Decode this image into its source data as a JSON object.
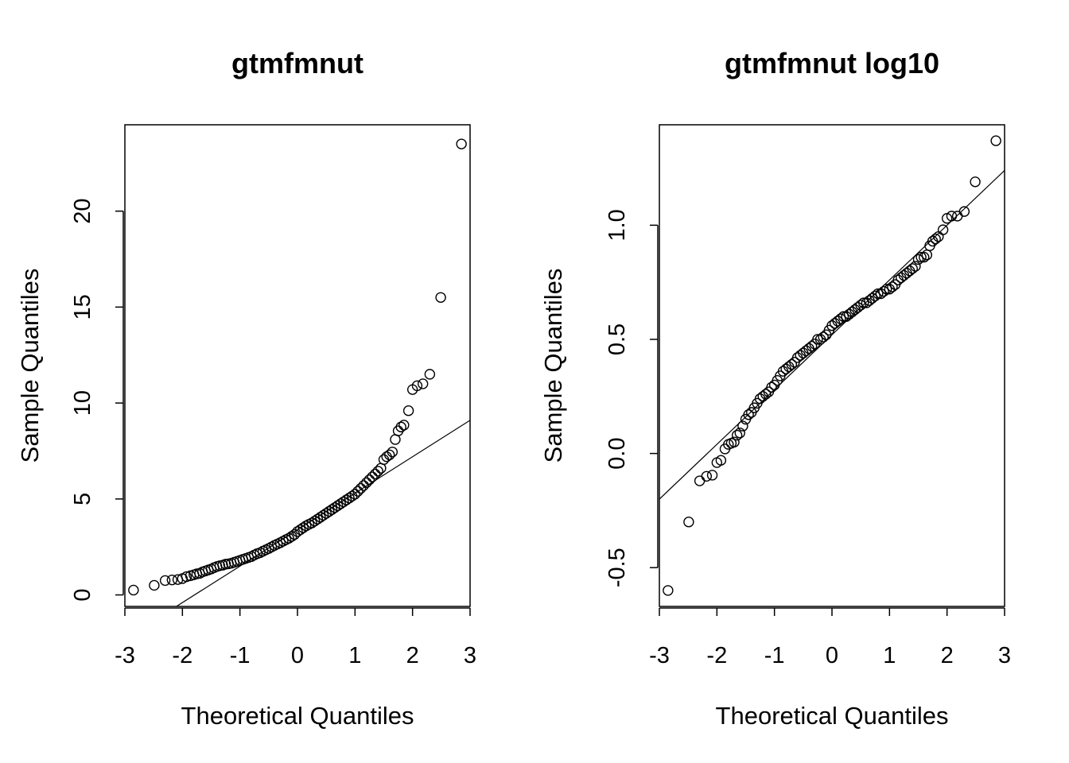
{
  "chart_data": [
    {
      "type": "scatter",
      "subtype": "qq-normal",
      "title": "gtmfmnut",
      "xlabel": "Theoretical Quantiles",
      "ylabel": "Sample Quantiles",
      "xlim": [
        -3,
        3
      ],
      "ylim": [
        -0.6,
        24.5
      ],
      "xticks": [
        -3,
        -2,
        -1,
        0,
        1,
        2,
        3
      ],
      "yticks": [
        0,
        5,
        10,
        15,
        20
      ],
      "reference_line": {
        "intercept": 3.4,
        "slope": 1.9
      },
      "points": [
        [
          -2.85,
          0.25
        ],
        [
          -2.49,
          0.5
        ],
        [
          -2.3,
          0.75
        ],
        [
          -2.18,
          0.78
        ],
        [
          -2.08,
          0.8
        ],
        [
          -2.0,
          0.85
        ],
        [
          -1.93,
          0.95
        ],
        [
          -1.86,
          1.0
        ],
        [
          -1.8,
          1.05
        ],
        [
          -1.75,
          1.1
        ],
        [
          -1.7,
          1.12
        ],
        [
          -1.65,
          1.2
        ],
        [
          -1.6,
          1.25
        ],
        [
          -1.55,
          1.3
        ],
        [
          -1.5,
          1.35
        ],
        [
          -1.45,
          1.42
        ],
        [
          -1.4,
          1.48
        ],
        [
          -1.35,
          1.52
        ],
        [
          -1.3,
          1.55
        ],
        [
          -1.25,
          1.6
        ],
        [
          -1.2,
          1.62
        ],
        [
          -1.15,
          1.65
        ],
        [
          -1.1,
          1.7
        ],
        [
          -1.05,
          1.75
        ],
        [
          -1.0,
          1.8
        ],
        [
          -0.95,
          1.85
        ],
        [
          -0.9,
          1.9
        ],
        [
          -0.85,
          1.95
        ],
        [
          -0.8,
          2.0
        ],
        [
          -0.75,
          2.08
        ],
        [
          -0.7,
          2.15
        ],
        [
          -0.65,
          2.2
        ],
        [
          -0.6,
          2.28
        ],
        [
          -0.55,
          2.35
        ],
        [
          -0.5,
          2.42
        ],
        [
          -0.45,
          2.5
        ],
        [
          -0.4,
          2.58
        ],
        [
          -0.35,
          2.65
        ],
        [
          -0.3,
          2.72
        ],
        [
          -0.25,
          2.8
        ],
        [
          -0.2,
          2.88
        ],
        [
          -0.15,
          2.95
        ],
        [
          -0.1,
          3.05
        ],
        [
          -0.05,
          3.15
        ],
        [
          0.0,
          3.3
        ],
        [
          0.05,
          3.4
        ],
        [
          0.1,
          3.5
        ],
        [
          0.15,
          3.6
        ],
        [
          0.2,
          3.68
        ],
        [
          0.25,
          3.75
        ],
        [
          0.3,
          3.85
        ],
        [
          0.35,
          3.95
        ],
        [
          0.4,
          4.05
        ],
        [
          0.45,
          4.15
        ],
        [
          0.5,
          4.25
        ],
        [
          0.55,
          4.35
        ],
        [
          0.6,
          4.45
        ],
        [
          0.65,
          4.55
        ],
        [
          0.7,
          4.65
        ],
        [
          0.75,
          4.75
        ],
        [
          0.8,
          4.85
        ],
        [
          0.85,
          4.95
        ],
        [
          0.9,
          5.05
        ],
        [
          0.95,
          5.15
        ],
        [
          1.0,
          5.25
        ],
        [
          1.05,
          5.4
        ],
        [
          1.1,
          5.55
        ],
        [
          1.15,
          5.7
        ],
        [
          1.2,
          5.85
        ],
        [
          1.25,
          6.0
        ],
        [
          1.3,
          6.15
        ],
        [
          1.35,
          6.3
        ],
        [
          1.4,
          6.45
        ],
        [
          1.45,
          6.6
        ],
        [
          1.5,
          7.05
        ],
        [
          1.55,
          7.2
        ],
        [
          1.6,
          7.3
        ],
        [
          1.65,
          7.45
        ],
        [
          1.7,
          8.1
        ],
        [
          1.75,
          8.55
        ],
        [
          1.8,
          8.75
        ],
        [
          1.85,
          8.85
        ],
        [
          1.93,
          9.6
        ],
        [
          2.0,
          10.7
        ],
        [
          2.08,
          10.9
        ],
        [
          2.18,
          11.0
        ],
        [
          2.3,
          11.5
        ],
        [
          2.49,
          15.5
        ],
        [
          2.85,
          23.5
        ]
      ]
    },
    {
      "type": "scatter",
      "subtype": "qq-normal",
      "title": "gtmfmnut log10",
      "xlabel": "Theoretical Quantiles",
      "ylabel": "Sample Quantiles",
      "xlim": [
        -3,
        3
      ],
      "ylim": [
        -0.67,
        1.44
      ],
      "xticks": [
        -3,
        -2,
        -1,
        0,
        1,
        2,
        3
      ],
      "yticks": [
        -0.5,
        0.0,
        0.5,
        1.0
      ],
      "reference_line": {
        "intercept": 0.52,
        "slope": 0.24
      },
      "points": [
        [
          -2.85,
          -0.6
        ],
        [
          -2.49,
          -0.3
        ],
        [
          -2.3,
          -0.12
        ],
        [
          -2.18,
          -0.1
        ],
        [
          -2.08,
          -0.095
        ],
        [
          -2.0,
          -0.04
        ],
        [
          -1.93,
          -0.03
        ],
        [
          -1.86,
          0.02
        ],
        [
          -1.8,
          0.04
        ],
        [
          -1.75,
          0.045
        ],
        [
          -1.7,
          0.05
        ],
        [
          -1.65,
          0.08
        ],
        [
          -1.6,
          0.09
        ],
        [
          -1.55,
          0.12
        ],
        [
          -1.5,
          0.15
        ],
        [
          -1.45,
          0.17
        ],
        [
          -1.4,
          0.18
        ],
        [
          -1.35,
          0.2
        ],
        [
          -1.3,
          0.22
        ],
        [
          -1.25,
          0.24
        ],
        [
          -1.2,
          0.25
        ],
        [
          -1.15,
          0.26
        ],
        [
          -1.1,
          0.27
        ],
        [
          -1.05,
          0.29
        ],
        [
          -1.0,
          0.3
        ],
        [
          -0.95,
          0.32
        ],
        [
          -0.9,
          0.34
        ],
        [
          -0.85,
          0.36
        ],
        [
          -0.8,
          0.37
        ],
        [
          -0.75,
          0.38
        ],
        [
          -0.7,
          0.39
        ],
        [
          -0.65,
          0.4
        ],
        [
          -0.6,
          0.42
        ],
        [
          -0.55,
          0.43
        ],
        [
          -0.5,
          0.44
        ],
        [
          -0.45,
          0.45
        ],
        [
          -0.4,
          0.46
        ],
        [
          -0.35,
          0.47
        ],
        [
          -0.3,
          0.48
        ],
        [
          -0.25,
          0.5
        ],
        [
          -0.2,
          0.5
        ],
        [
          -0.15,
          0.51
        ],
        [
          -0.1,
          0.52
        ],
        [
          -0.05,
          0.54
        ],
        [
          0.0,
          0.56
        ],
        [
          0.05,
          0.57
        ],
        [
          0.1,
          0.58
        ],
        [
          0.15,
          0.59
        ],
        [
          0.2,
          0.6
        ],
        [
          0.25,
          0.6
        ],
        [
          0.3,
          0.61
        ],
        [
          0.35,
          0.62
        ],
        [
          0.4,
          0.63
        ],
        [
          0.45,
          0.64
        ],
        [
          0.5,
          0.65
        ],
        [
          0.55,
          0.66
        ],
        [
          0.6,
          0.66
        ],
        [
          0.65,
          0.67
        ],
        [
          0.7,
          0.68
        ],
        [
          0.75,
          0.69
        ],
        [
          0.8,
          0.7
        ],
        [
          0.85,
          0.7
        ],
        [
          0.9,
          0.71
        ],
        [
          0.95,
          0.72
        ],
        [
          1.0,
          0.72
        ],
        [
          1.05,
          0.73
        ],
        [
          1.1,
          0.74
        ],
        [
          1.15,
          0.76
        ],
        [
          1.2,
          0.77
        ],
        [
          1.25,
          0.78
        ],
        [
          1.3,
          0.79
        ],
        [
          1.35,
          0.8
        ],
        [
          1.4,
          0.81
        ],
        [
          1.45,
          0.82
        ],
        [
          1.5,
          0.85
        ],
        [
          1.55,
          0.86
        ],
        [
          1.6,
          0.86
        ],
        [
          1.65,
          0.87
        ],
        [
          1.7,
          0.91
        ],
        [
          1.75,
          0.93
        ],
        [
          1.8,
          0.94
        ],
        [
          1.85,
          0.95
        ],
        [
          1.93,
          0.98
        ],
        [
          2.0,
          1.03
        ],
        [
          2.08,
          1.04
        ],
        [
          2.18,
          1.04
        ],
        [
          2.3,
          1.06
        ],
        [
          2.49,
          1.19
        ],
        [
          2.85,
          1.37
        ]
      ]
    }
  ]
}
